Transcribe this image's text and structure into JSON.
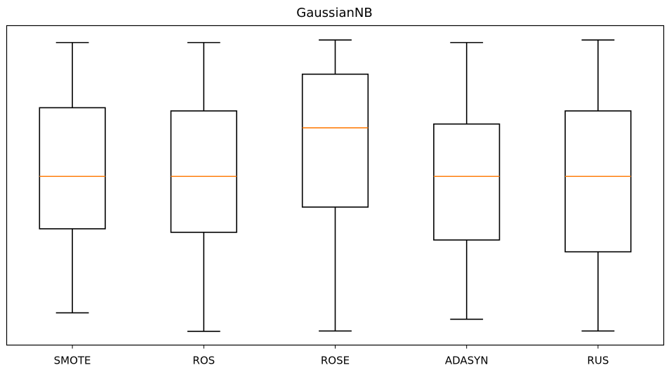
{
  "chart_data": {
    "type": "box",
    "title": "GaussianNB",
    "xlabel": "",
    "ylabel": "",
    "categories": [
      "SMOTE",
      "ROS",
      "ROSE",
      "ADASYN",
      "RUS"
    ],
    "boxes": [
      {
        "whisker_low": 0.101,
        "q1": 0.364,
        "median": 0.528,
        "q3": 0.743,
        "whisker_high": 0.947
      },
      {
        "whisker_low": 0.043,
        "q1": 0.353,
        "median": 0.528,
        "q3": 0.733,
        "whisker_high": 0.947
      },
      {
        "whisker_low": 0.044,
        "q1": 0.432,
        "median": 0.68,
        "q3": 0.848,
        "whisker_high": 0.955
      },
      {
        "whisker_low": 0.081,
        "q1": 0.329,
        "median": 0.528,
        "q3": 0.692,
        "whisker_high": 0.947
      },
      {
        "whisker_low": 0.044,
        "q1": 0.292,
        "median": 0.528,
        "q3": 0.733,
        "whisker_high": 0.955
      }
    ],
    "ylim": [
      0,
      1
    ],
    "y_ticks_shown": false,
    "grid": false,
    "median_color": "#ff7f0e",
    "box_color": "#000000"
  }
}
